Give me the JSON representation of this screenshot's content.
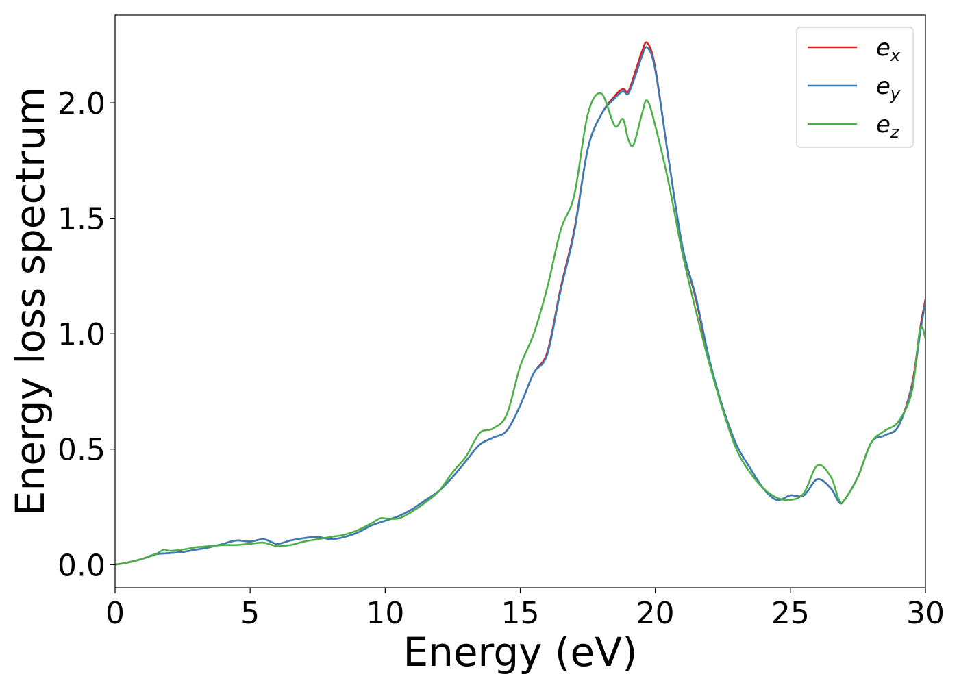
{
  "chart_data": {
    "type": "line",
    "xlabel": "Energy (eV)",
    "ylabel": "Energy loss spectrum",
    "xlim": [
      0,
      30
    ],
    "ylim": [
      -0.1,
      2.38
    ],
    "xticks": [
      0,
      5,
      10,
      15,
      20,
      25,
      30
    ],
    "yticks": [
      0.0,
      0.5,
      1.0,
      1.5,
      2.0
    ],
    "xtick_labels": [
      "0",
      "5",
      "10",
      "15",
      "20",
      "25",
      "30"
    ],
    "ytick_labels": [
      "0.0",
      "0.5",
      "1.0",
      "1.5",
      "2.0"
    ],
    "grid": false,
    "legend_position": "top-right",
    "series": [
      {
        "name": "e_x",
        "legend_base": "e",
        "legend_sub": "x",
        "color": "#e41a1c",
        "x": [
          0,
          0.5,
          1,
          1.5,
          2,
          2.5,
          3,
          3.5,
          4,
          4.5,
          5,
          5.5,
          6,
          6.5,
          7,
          7.5,
          8,
          8.5,
          9,
          9.5,
          10,
          10.5,
          11,
          11.5,
          12,
          12.5,
          13,
          13.5,
          14,
          14.5,
          15,
          15.5,
          16,
          16.5,
          17,
          17.5,
          18,
          18.5,
          18.8,
          19,
          19.3,
          19.5,
          19.7,
          20,
          20.5,
          21,
          21.5,
          22,
          22.5,
          23,
          23.5,
          24,
          24.5,
          25,
          25.5,
          26,
          26.5,
          26.8,
          27,
          27.5,
          28,
          28.5,
          29,
          29.5,
          29.8,
          30
        ],
        "y": [
          0.0,
          0.01,
          0.025,
          0.045,
          0.05,
          0.055,
          0.065,
          0.075,
          0.09,
          0.105,
          0.1,
          0.11,
          0.09,
          0.105,
          0.115,
          0.12,
          0.11,
          0.12,
          0.14,
          0.17,
          0.19,
          0.21,
          0.24,
          0.28,
          0.32,
          0.38,
          0.45,
          0.52,
          0.55,
          0.58,
          0.69,
          0.83,
          0.92,
          1.2,
          1.45,
          1.8,
          1.95,
          2.03,
          2.06,
          2.05,
          2.15,
          2.22,
          2.26,
          2.15,
          1.75,
          1.38,
          1.15,
          0.88,
          0.68,
          0.52,
          0.42,
          0.33,
          0.28,
          0.3,
          0.3,
          0.37,
          0.33,
          0.27,
          0.28,
          0.38,
          0.53,
          0.56,
          0.6,
          0.78,
          1.02,
          1.15
        ]
      },
      {
        "name": "e_y",
        "legend_base": "e",
        "legend_sub": "y",
        "color": "#377eb8",
        "x": [
          0,
          0.5,
          1,
          1.5,
          2,
          2.5,
          3,
          3.5,
          4,
          4.5,
          5,
          5.5,
          6,
          6.5,
          7,
          7.5,
          8,
          8.5,
          9,
          9.5,
          10,
          10.5,
          11,
          11.5,
          12,
          12.5,
          13,
          13.5,
          14,
          14.5,
          15,
          15.5,
          16,
          16.5,
          17,
          17.5,
          18,
          18.5,
          18.8,
          19,
          19.3,
          19.5,
          19.7,
          20,
          20.5,
          21,
          21.5,
          22,
          22.5,
          23,
          23.5,
          24,
          24.5,
          25,
          25.5,
          26,
          26.5,
          26.8,
          27,
          27.5,
          28,
          28.5,
          29,
          29.5,
          29.8,
          30
        ],
        "y": [
          0.0,
          0.01,
          0.025,
          0.045,
          0.05,
          0.055,
          0.065,
          0.075,
          0.09,
          0.105,
          0.1,
          0.11,
          0.09,
          0.105,
          0.115,
          0.12,
          0.11,
          0.12,
          0.14,
          0.17,
          0.19,
          0.21,
          0.24,
          0.28,
          0.32,
          0.38,
          0.45,
          0.52,
          0.55,
          0.58,
          0.69,
          0.83,
          0.91,
          1.19,
          1.44,
          1.8,
          1.95,
          2.02,
          2.05,
          2.04,
          2.13,
          2.2,
          2.24,
          2.14,
          1.75,
          1.38,
          1.16,
          0.89,
          0.68,
          0.52,
          0.42,
          0.33,
          0.28,
          0.3,
          0.3,
          0.37,
          0.33,
          0.27,
          0.28,
          0.38,
          0.53,
          0.56,
          0.6,
          0.77,
          1.0,
          1.14
        ]
      },
      {
        "name": "e_z",
        "legend_base": "e",
        "legend_sub": "z",
        "color": "#4daf4a",
        "x": [
          0,
          0.5,
          1,
          1.5,
          1.8,
          2,
          2.5,
          3,
          3.5,
          4,
          4.5,
          5,
          5.5,
          6,
          6.5,
          7,
          7.5,
          8,
          8.5,
          9,
          9.5,
          9.8,
          10,
          10.5,
          11,
          11.5,
          12,
          12.5,
          13,
          13.5,
          14,
          14.5,
          15,
          15.5,
          16,
          16.5,
          17,
          17.5,
          18,
          18.5,
          18.8,
          19,
          19.2,
          19.5,
          19.7,
          20,
          20.5,
          21,
          21.5,
          22,
          22.5,
          23,
          23.5,
          24,
          24.5,
          25,
          25.5,
          26,
          26.5,
          26.8,
          27,
          27.5,
          28,
          28.5,
          29,
          29.5,
          29.8,
          30
        ],
        "y": [
          0.0,
          0.01,
          0.025,
          0.045,
          0.065,
          0.06,
          0.065,
          0.075,
          0.08,
          0.085,
          0.085,
          0.09,
          0.095,
          0.08,
          0.085,
          0.1,
          0.11,
          0.12,
          0.13,
          0.15,
          0.18,
          0.2,
          0.2,
          0.2,
          0.23,
          0.27,
          0.32,
          0.4,
          0.47,
          0.57,
          0.59,
          0.65,
          0.86,
          1.0,
          1.2,
          1.45,
          1.6,
          1.95,
          2.04,
          1.9,
          1.93,
          1.84,
          1.82,
          1.95,
          2.01,
          1.9,
          1.65,
          1.35,
          1.1,
          0.87,
          0.67,
          0.5,
          0.4,
          0.33,
          0.29,
          0.28,
          0.31,
          0.43,
          0.38,
          0.28,
          0.28,
          0.38,
          0.53,
          0.58,
          0.62,
          0.75,
          1.02,
          0.98
        ]
      }
    ]
  }
}
